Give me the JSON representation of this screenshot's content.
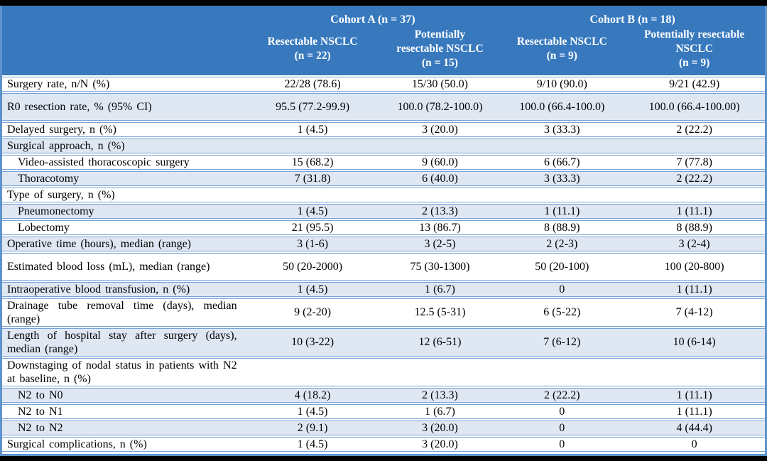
{
  "colors": {
    "page_background": "#000000",
    "header_background": "#3879BE",
    "header_text": "#FFFFFF",
    "shaded_row": "#DFE7F3",
    "row_line": "#76A3D8",
    "outer_border": "#5E93CC",
    "body_text": "#000000"
  },
  "table": {
    "header": {
      "corner_label": "",
      "groups": [
        {
          "label": "Cohort A (n = 37)"
        },
        {
          "label": "Cohort B (n = 18)"
        }
      ],
      "columns": [
        {
          "label": "Resectable NSCLC\n(n = 22)"
        },
        {
          "label": "Potentially\nresectable NSCLC\n(n = 15)"
        },
        {
          "label": "Resectable NSCLC\n(n = 9)"
        },
        {
          "label": "Potentially resectable\nNSCLC\n(n = 9)"
        }
      ]
    },
    "rows": [
      {
        "label": "Surgery rate, n/N (%)",
        "values": [
          "22/28 (78.6)",
          "15/30 (50.0)",
          "9/10 (90.0)",
          "9/21 (42.9)"
        ],
        "indent": false,
        "shaded": false,
        "tall": false
      },
      {
        "label": "R0 resection rate, % (95% CI)",
        "values": [
          "95.5 (77.2-99.9)",
          "100.0 (78.2-100.0)",
          "100.0 (66.4-100.0)",
          "100.0 (66.4-100.00)"
        ],
        "indent": false,
        "shaded": true,
        "tall": true
      },
      {
        "label": "Delayed surgery, n (%)",
        "values": [
          "1 (4.5)",
          "3 (20.0)",
          "3 (33.3)",
          "2 (22.2)"
        ],
        "indent": false,
        "shaded": false,
        "tall": false
      },
      {
        "label": "Surgical approach, n (%)",
        "values": [
          "",
          "",
          "",
          ""
        ],
        "indent": false,
        "shaded": true,
        "tall": false
      },
      {
        "label": "Video-assisted thoracoscopic surgery",
        "values": [
          "15 (68.2)",
          "9 (60.0)",
          "6 (66.7)",
          "7 (77.8)"
        ],
        "indent": true,
        "shaded": false,
        "tall": false
      },
      {
        "label": "Thoracotomy",
        "values": [
          "7 (31.8)",
          "6 (40.0)",
          "3 (33.3)",
          "2 (22.2)"
        ],
        "indent": true,
        "shaded": true,
        "tall": false
      },
      {
        "label": "Type of surgery, n (%)",
        "values": [
          "",
          "",
          "",
          ""
        ],
        "indent": false,
        "shaded": false,
        "tall": false
      },
      {
        "label": "Pneumonectomy",
        "values": [
          "1 (4.5)",
          "2 (13.3)",
          "1 (11.1)",
          "1 (11.1)"
        ],
        "indent": true,
        "shaded": true,
        "tall": false
      },
      {
        "label": "Lobectomy",
        "values": [
          "21 (95.5)",
          "13 (86.7)",
          "8 (88.9)",
          "8 (88.9)"
        ],
        "indent": true,
        "shaded": false,
        "tall": false
      },
      {
        "label": "Operative time (hours), median (range)",
        "values": [
          "3 (1-6)",
          "3 (2-5)",
          "2 (2-3)",
          "3 (2-4)"
        ],
        "indent": false,
        "shaded": true,
        "tall": false
      },
      {
        "label": "Estimated blood loss (mL), median (range)",
        "values": [
          "50 (20-2000)",
          "75 (30-1300)",
          "50 (20-100)",
          "100 (20-800)"
        ],
        "indent": false,
        "shaded": false,
        "tall": true
      },
      {
        "label": "Intraoperative blood transfusion, n (%)",
        "values": [
          "1 (4.5)",
          "1 (6.7)",
          "0",
          "1 (11.1)"
        ],
        "indent": false,
        "shaded": true,
        "tall": false
      },
      {
        "label": "Drainage tube removal time (days), median (range)",
        "values": [
          "9 (2-20)",
          "12.5 (5-31)",
          "6 (5-22)",
          "7 (4-12)"
        ],
        "indent": false,
        "shaded": false,
        "tall": true
      },
      {
        "label": "Length of hospital stay after surgery (days), median (range)",
        "values": [
          "10 (3-22)",
          "12 (6-51)",
          "7 (6-12)",
          "10 (6-14)"
        ],
        "indent": false,
        "shaded": true,
        "tall": true
      },
      {
        "label": "Downstaging of nodal status in patients with N2 at baseline, n (%)",
        "values": [
          "",
          "",
          "",
          ""
        ],
        "indent": false,
        "shaded": false,
        "tall": true
      },
      {
        "label": "N2 to N0",
        "values": [
          "4 (18.2)",
          "2 (13.3)",
          "2 (22.2)",
          "1 (11.1)"
        ],
        "indent": true,
        "shaded": true,
        "tall": false
      },
      {
        "label": "N2 to N1",
        "values": [
          "1 (4.5)",
          "1 (6.7)",
          "0",
          "1 (11.1)"
        ],
        "indent": true,
        "shaded": false,
        "tall": false
      },
      {
        "label": "N2 to N2",
        "values": [
          "2 (9.1)",
          "3 (20.0)",
          "0",
          "4 (44.4)"
        ],
        "indent": true,
        "shaded": true,
        "tall": false
      },
      {
        "label": "Surgical complications, n (%)",
        "values": [
          "1 (4.5)",
          "3 (20.0)",
          "0",
          "0"
        ],
        "indent": false,
        "shaded": false,
        "tall": false
      }
    ]
  }
}
